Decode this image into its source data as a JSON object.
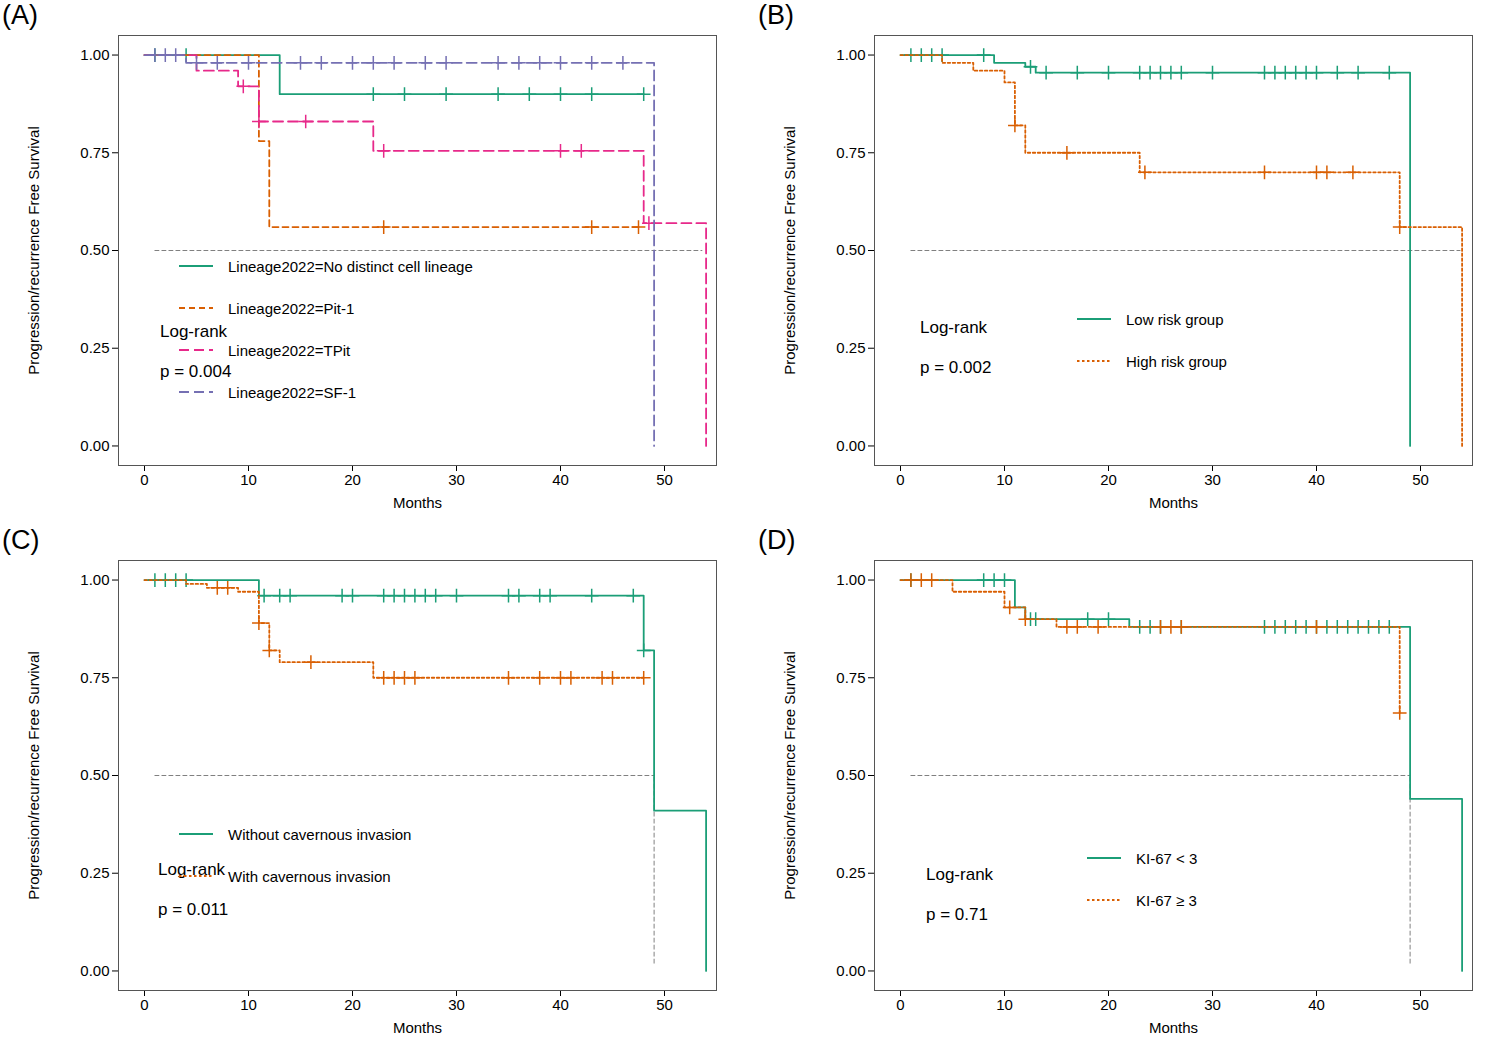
{
  "chart_data": [
    {
      "type": "line",
      "title": "(A)",
      "x_label": "Months",
      "y_label": "Progression/recurrence Free Survival",
      "annotations": [
        "Log-rank",
        "p = 0.004"
      ],
      "xlim": [
        -2.5,
        55
      ],
      "xticks": [
        0,
        10,
        20,
        30,
        40,
        50
      ],
      "ylim": [
        -0.05,
        1.05
      ],
      "yticks": [
        {
          "value": 0,
          "label": "0.00"
        },
        {
          "value": 0.25,
          "label": "0.25"
        },
        {
          "value": 0.5,
          "label": "0.50"
        },
        {
          "value": 0.75,
          "label": "0.75"
        },
        {
          "value": 1,
          "label": "1.00"
        }
      ],
      "reference_lines": [
        {
          "x": [
            1,
            53.6
          ],
          "y": [
            0.5,
            0.5
          ]
        }
      ],
      "series": [
        {
          "name": "Lineage2022=No distinct cell lineage",
          "color": "#1b9e77",
          "line_style": "solid",
          "x": [
            0,
            13,
            48
          ],
          "values": [
            1,
            0.9,
            0.9
          ],
          "censored": [
            1,
            4,
            22,
            25,
            29,
            34,
            37,
            40,
            43,
            48
          ]
        },
        {
          "name": "Lineage2022=Pit-1",
          "color": "#d95f02",
          "line_style": "dashed",
          "x": [
            0,
            11,
            12,
            47.5
          ],
          "values": [
            1,
            0.78,
            0.56,
            0.56
          ],
          "censored": [
            23,
            43,
            47.5
          ]
        },
        {
          "name": "Lineage2022=TPit",
          "color": "#e7298a",
          "line_style": "longdash",
          "x": [
            0,
            5,
            9,
            11,
            22,
            48,
            54
          ],
          "values": [
            1,
            0.96,
            0.92,
            0.83,
            0.755,
            0.57,
            0
          ],
          "censored": [
            9.5,
            11,
            15.5,
            23,
            40,
            42,
            48.5
          ]
        },
        {
          "name": "Lineage2022=SF-1",
          "color": "#7570b3",
          "line_style": "longdash",
          "x": [
            0,
            4,
            49
          ],
          "values": [
            1,
            0.98,
            0
          ],
          "censored": [
            1,
            2,
            3,
            5,
            7,
            10,
            15,
            17,
            20,
            22,
            24,
            27,
            29,
            34,
            36,
            38,
            40,
            43,
            46
          ]
        }
      ]
    },
    {
      "type": "line",
      "title": "(B)",
      "x_label": "Months",
      "y_label": "Progression/recurrence Free Survival",
      "annotations": [
        "Log-rank",
        "p = 0.002"
      ],
      "xlim": [
        -2.5,
        55
      ],
      "xticks": [
        0,
        10,
        20,
        30,
        40,
        50
      ],
      "ylim": [
        -0.05,
        1.05
      ],
      "yticks": [
        {
          "value": 0,
          "label": "0.00"
        },
        {
          "value": 0.25,
          "label": "0.25"
        },
        {
          "value": 0.5,
          "label": "0.50"
        },
        {
          "value": 0.75,
          "label": "0.75"
        },
        {
          "value": 1,
          "label": "1.00"
        }
      ],
      "reference_lines": [
        {
          "x": [
            1,
            53.8
          ],
          "y": [
            0.5,
            0.5
          ]
        }
      ],
      "series": [
        {
          "name": "Low risk group",
          "color": "#1b9e77",
          "line_style": "solid",
          "x": [
            0,
            9,
            12,
            13,
            49
          ],
          "values": [
            1,
            0.98,
            0.97,
            0.955,
            0
          ],
          "censored": [
            1,
            2,
            3,
            4,
            8,
            12.5,
            14,
            17,
            20,
            23,
            24,
            25,
            26,
            27,
            30,
            35,
            36,
            37,
            38,
            39,
            40,
            42,
            44,
            47
          ]
        },
        {
          "name": "High risk group",
          "color": "#d95f02",
          "line_style": "dotted",
          "x": [
            0,
            4,
            7,
            10,
            11,
            12,
            23,
            48,
            54
          ],
          "values": [
            1,
            0.98,
            0.96,
            0.93,
            0.82,
            0.75,
            0.7,
            0.56,
            0
          ],
          "censored": [
            11,
            16,
            23.5,
            35,
            40,
            41,
            43.5,
            48
          ]
        }
      ]
    },
    {
      "type": "line",
      "title": "(C)",
      "x_label": "Months",
      "y_label": "Progression/recurrence Free Survival",
      "annotations": [
        "Log-rank",
        "p = 0.011"
      ],
      "xlim": [
        -2.5,
        55
      ],
      "xticks": [
        0,
        10,
        20,
        30,
        40,
        50
      ],
      "ylim": [
        -0.05,
        1.05
      ],
      "yticks": [
        {
          "value": 0,
          "label": "0.00"
        },
        {
          "value": 0.25,
          "label": "0.25"
        },
        {
          "value": 0.5,
          "label": "0.50"
        },
        {
          "value": 0.75,
          "label": "0.75"
        },
        {
          "value": 1,
          "label": "1.00"
        }
      ],
      "reference_lines": [
        {
          "x": [
            1,
            49
          ],
          "y": [
            0.5,
            0.5
          ]
        },
        {
          "x": [
            49,
            49
          ],
          "y": [
            0.02,
            0.5
          ]
        }
      ],
      "series": [
        {
          "name": "Without cavernous invasion",
          "color": "#1b9e77",
          "line_style": "solid",
          "x": [
            0,
            11,
            48,
            49,
            54
          ],
          "values": [
            1,
            0.96,
            0.82,
            0.41,
            0
          ],
          "censored": [
            1,
            2,
            3,
            4,
            11.5,
            13,
            14,
            19,
            20,
            23,
            24,
            25,
            26,
            27,
            28,
            30,
            35,
            36,
            38,
            39,
            43,
            47,
            48
          ]
        },
        {
          "name": "With cavernous invasion",
          "color": "#d95f02",
          "line_style": "dotted",
          "x": [
            0,
            4,
            6,
            9,
            11,
            12,
            13,
            22,
            48
          ],
          "values": [
            1,
            0.99,
            0.98,
            0.97,
            0.89,
            0.82,
            0.79,
            0.75,
            0.75
          ],
          "censored": [
            7,
            8,
            11,
            12,
            16,
            23,
            24,
            25,
            26,
            35,
            38,
            40,
            41,
            44,
            45,
            48
          ]
        }
      ]
    },
    {
      "type": "line",
      "title": "(D)",
      "x_label": "Months",
      "y_label": "Progression/recurrence Free Survival",
      "annotations": [
        "Log-rank",
        "p = 0.71"
      ],
      "xlim": [
        -2.5,
        55
      ],
      "xticks": [
        0,
        10,
        20,
        30,
        40,
        50
      ],
      "ylim": [
        -0.05,
        1.05
      ],
      "yticks": [
        {
          "value": 0,
          "label": "0.00"
        },
        {
          "value": 0.25,
          "label": "0.25"
        },
        {
          "value": 0.5,
          "label": "0.50"
        },
        {
          "value": 0.75,
          "label": "0.75"
        },
        {
          "value": 1,
          "label": "1.00"
        }
      ],
      "reference_lines": [
        {
          "x": [
            1,
            49
          ],
          "y": [
            0.5,
            0.5
          ]
        },
        {
          "x": [
            49,
            49
          ],
          "y": [
            0.02,
            0.5
          ]
        }
      ],
      "series": [
        {
          "name": "KI-67 < 3",
          "color": "#1b9e77",
          "line_style": "solid",
          "x": [
            0,
            11,
            12,
            22,
            49,
            54
          ],
          "values": [
            1,
            0.93,
            0.9,
            0.88,
            0.44,
            0
          ],
          "censored": [
            1,
            8,
            9,
            10,
            12.5,
            13,
            18,
            20,
            23,
            24,
            25,
            27,
            35,
            36,
            37,
            38,
            39,
            40,
            41,
            42,
            43,
            44,
            45,
            46,
            47
          ]
        },
        {
          "name": "KI-67 ≥ 3",
          "color": "#d95f02",
          "line_style": "dotted",
          "x": [
            0,
            5,
            10,
            12,
            15,
            48
          ],
          "values": [
            1,
            0.97,
            0.93,
            0.9,
            0.88,
            0.66
          ],
          "censored": [
            1,
            2,
            3,
            10.5,
            12,
            16,
            17,
            19,
            25,
            26,
            27,
            40,
            48
          ]
        }
      ]
    }
  ]
}
